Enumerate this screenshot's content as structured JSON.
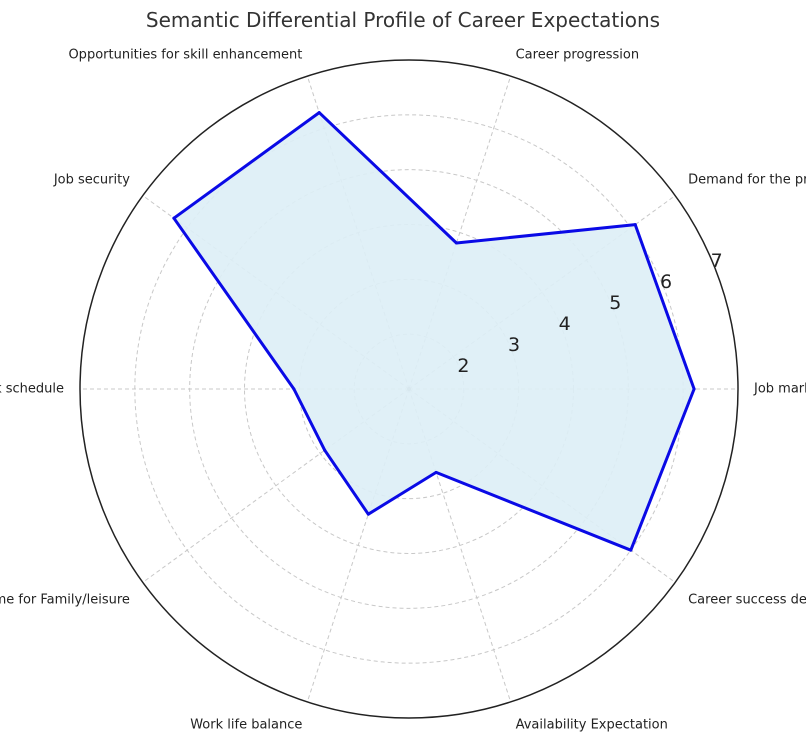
{
  "chart_data": {
    "type": "radar",
    "title": "Semantic Differential Profile of Career Expectations",
    "categories": [
      "Job market",
      "Demand for the profession",
      "Career progression",
      "Opportunities for skill enhancement",
      "Job security",
      "Work schedule",
      "Personal time for Family/leisure",
      "Work life balance",
      "Availability Expectation",
      "Career success determination"
    ],
    "series": [
      {
        "values": [
          6.2,
          6.1,
          3.8,
          6.3,
          6.3,
          3.1,
          2.9,
          3.4,
          2.6,
          6.0
        ]
      }
    ],
    "rlim": [
      1,
      7
    ],
    "rticks": [
      2,
      3,
      4,
      5,
      6,
      7
    ],
    "grid": true,
    "colors": {
      "line": "#0a0ae6",
      "fill": "#ddeef6",
      "grid": "#c8c8c8",
      "frame": "#222222"
    }
  }
}
